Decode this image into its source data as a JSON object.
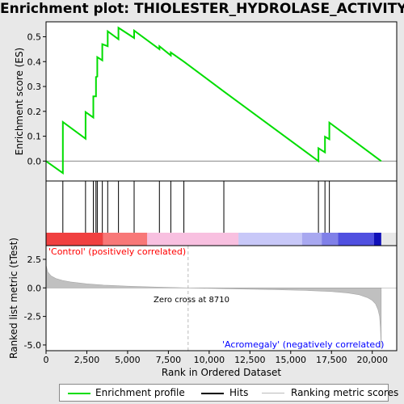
{
  "title": "Enrichment plot: THIOLESTER_HYDROLASE_ACTIVITY",
  "colors": {
    "es_line": "#00dd00",
    "hits": "#000000",
    "metric_fill": "#c0c0c0",
    "positive": "#ff0000",
    "negative": "#0000ff",
    "zero_cross": "#bbbbbb"
  },
  "chart_data": {
    "type": "line",
    "es_panel": {
      "ylabel": "Enrichment score (ES)",
      "ylim": [
        -0.08,
        0.56
      ],
      "yticks": [
        0.0,
        0.1,
        0.2,
        0.3,
        0.4,
        0.5
      ],
      "ytick_labels": [
        "0.0",
        "0.1",
        "0.2",
        "0.3",
        "0.4",
        "0.5"
      ],
      "points": [
        [
          0,
          0.0
        ],
        [
          1030,
          -0.048
        ],
        [
          1030,
          0.157
        ],
        [
          2420,
          0.09
        ],
        [
          2420,
          0.197
        ],
        [
          2900,
          0.175
        ],
        [
          2900,
          0.26
        ],
        [
          3060,
          0.26
        ],
        [
          3060,
          0.338
        ],
        [
          3140,
          0.34
        ],
        [
          3140,
          0.418
        ],
        [
          3450,
          0.405
        ],
        [
          3450,
          0.47
        ],
        [
          3780,
          0.462
        ],
        [
          3780,
          0.522
        ],
        [
          4440,
          0.49
        ],
        [
          4440,
          0.536
        ],
        [
          5400,
          0.495
        ],
        [
          5400,
          0.525
        ],
        [
          6950,
          0.45
        ],
        [
          6950,
          0.462
        ],
        [
          7650,
          0.425
        ],
        [
          7650,
          0.437
        ],
        [
          8450,
          0.4
        ],
        [
          10900,
          0.28
        ],
        [
          16700,
          0.0
        ],
        [
          16700,
          0.052
        ],
        [
          17100,
          0.035
        ],
        [
          17100,
          0.098
        ],
        [
          17370,
          0.088
        ],
        [
          17370,
          0.155
        ],
        [
          20550,
          0.0
        ]
      ]
    },
    "hits": [
      1030,
      2420,
      2900,
      3060,
      3140,
      3450,
      3780,
      4440,
      5400,
      6950,
      7650,
      8450,
      10900,
      16700,
      17100,
      17370
    ],
    "metric_panel": {
      "ylabel": "Ranked list metric (tTest)",
      "ylim": [
        -5.5,
        3.7
      ],
      "yticks": [
        2.5,
        0.0,
        -2.5,
        -5.0
      ],
      "ytick_labels": [
        "2.5",
        "0.0",
        "-2.5",
        "-5.0"
      ],
      "profile": [
        [
          0,
          2.0
        ],
        [
          100,
          1.4
        ],
        [
          300,
          1.05
        ],
        [
          600,
          0.82
        ],
        [
          1000,
          0.65
        ],
        [
          1500,
          0.52
        ],
        [
          2500,
          0.35
        ],
        [
          3500,
          0.25
        ],
        [
          5000,
          0.15
        ],
        [
          7000,
          0.06
        ],
        [
          8710,
          0.0
        ],
        [
          11000,
          -0.07
        ],
        [
          14000,
          -0.15
        ],
        [
          16000,
          -0.23
        ],
        [
          17500,
          -0.32
        ],
        [
          18500,
          -0.45
        ],
        [
          19200,
          -0.6
        ],
        [
          19700,
          -0.85
        ],
        [
          20000,
          -1.1
        ],
        [
          20200,
          -1.4
        ],
        [
          20350,
          -1.9
        ],
        [
          20450,
          -2.5
        ],
        [
          20500,
          -3.5
        ],
        [
          20550,
          -5.3
        ]
      ],
      "zero_cross_label": "Zero cross at 8710",
      "zero_cross": 8710,
      "pos_label": "'Control' (positively correlated)",
      "neg_label": "'Acromegaly' (negatively correlated)"
    },
    "xlabel": "Rank in Ordered Dataset",
    "xlim": [
      0,
      21500
    ],
    "xticks": [
      0,
      2500,
      5000,
      7500,
      10000,
      12500,
      15000,
      17500,
      20000
    ],
    "xtick_labels": [
      "0",
      "2,500",
      "5,000",
      "7,500",
      "10,000",
      "12,500",
      "15,000",
      "17,500",
      "20,000"
    ],
    "n_genes": 20550,
    "heat_segments": [
      {
        "x0": 0,
        "x1": 3500,
        "color": "#f04040"
      },
      {
        "x0": 3500,
        "x1": 6200,
        "color": "#f87878"
      },
      {
        "x0": 6200,
        "x1": 11800,
        "color": "#f8c0e0"
      },
      {
        "x0": 11800,
        "x1": 15700,
        "color": "#c8c8f8"
      },
      {
        "x0": 15700,
        "x1": 16900,
        "color": "#a8a8f0"
      },
      {
        "x0": 16900,
        "x1": 17900,
        "color": "#8080e8"
      },
      {
        "x0": 17900,
        "x1": 20100,
        "color": "#5050e0"
      },
      {
        "x0": 20100,
        "x1": 20550,
        "color": "#1010b8"
      }
    ]
  },
  "legend": [
    {
      "label": "Enrichment profile",
      "icon": "green-line"
    },
    {
      "label": "Hits",
      "icon": "black-line"
    },
    {
      "label": "Ranking metric scores",
      "icon": "gray-line"
    }
  ]
}
